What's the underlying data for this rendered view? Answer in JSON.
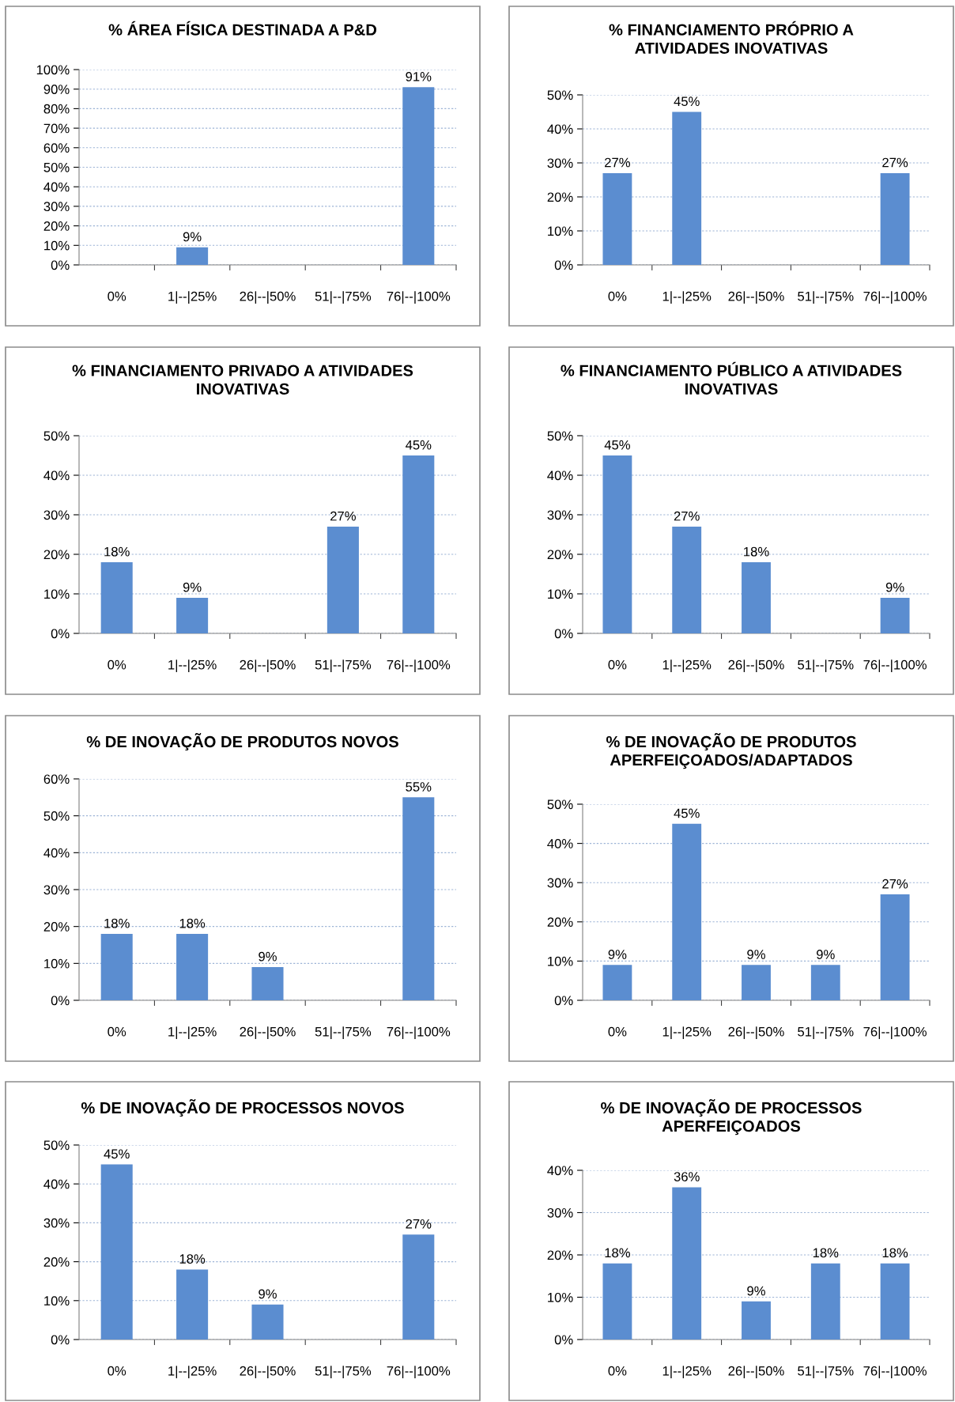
{
  "chart_data": [
    {
      "type": "bar",
      "title": "% ÁREA FÍSICA DESTINADA A P&D",
      "categories": [
        "0%",
        "1|--|25%",
        "26|--|50%",
        "51|--|75%",
        "76|--|100%"
      ],
      "values": [
        0,
        9,
        0,
        0,
        91
      ],
      "value_labels": [
        null,
        "9%",
        null,
        null,
        "91%"
      ],
      "color": "#5b8dd0",
      "ylim": [
        0,
        100
      ],
      "yticks": [
        {
          "value": 0,
          "label": "0%"
        },
        {
          "value": 10,
          "label": "10%"
        },
        {
          "value": 20,
          "label": "20%"
        },
        {
          "value": 30,
          "label": "30%"
        },
        {
          "value": 40,
          "label": "40%"
        },
        {
          "value": 50,
          "label": "50%"
        },
        {
          "value": 60,
          "label": "60%"
        },
        {
          "value": 70,
          "label": "70%"
        },
        {
          "value": 80,
          "label": "80%"
        },
        {
          "value": 90,
          "label": "90%"
        },
        {
          "value": 100,
          "label": "100%"
        }
      ],
      "grid": "y"
    },
    {
      "type": "bar",
      "title": "% FINANCIAMENTO PRÓPRIO A\nATIVIDADES INOVATIVAS",
      "categories": [
        "0%",
        "1|--|25%",
        "26|--|50%",
        "51|--|75%",
        "76|--|100%"
      ],
      "values": [
        27,
        45,
        0,
        0,
        27
      ],
      "value_labels": [
        "27%",
        "45%",
        null,
        null,
        "27%"
      ],
      "color": "#5b8dd0",
      "ylim": [
        0,
        50
      ],
      "yticks": [
        {
          "value": 0,
          "label": "0%"
        },
        {
          "value": 10,
          "label": "10%"
        },
        {
          "value": 20,
          "label": "20%"
        },
        {
          "value": 30,
          "label": "30%"
        },
        {
          "value": 40,
          "label": "40%"
        },
        {
          "value": 50,
          "label": "50%"
        }
      ],
      "grid": "y"
    },
    {
      "type": "bar",
      "title": "% FINANCIAMENTO PRIVADO A ATIVIDADES\nINOVATIVAS",
      "categories": [
        "0%",
        "1|--|25%",
        "26|--|50%",
        "51|--|75%",
        "76|--|100%"
      ],
      "values": [
        18,
        9,
        0,
        27,
        45
      ],
      "value_labels": [
        "18%",
        "9%",
        null,
        "27%",
        "45%"
      ],
      "color": "#5b8dd0",
      "ylim": [
        0,
        50
      ],
      "yticks": [
        {
          "value": 0,
          "label": "0%"
        },
        {
          "value": 10,
          "label": "10%"
        },
        {
          "value": 20,
          "label": "20%"
        },
        {
          "value": 30,
          "label": "30%"
        },
        {
          "value": 40,
          "label": "40%"
        },
        {
          "value": 50,
          "label": "50%"
        }
      ],
      "grid": "y"
    },
    {
      "type": "bar",
      "title": "% FINANCIAMENTO PÚBLICO A ATIVIDADES\nINOVATIVAS",
      "categories": [
        "0%",
        "1|--|25%",
        "26|--|50%",
        "51|--|75%",
        "76|--|100%"
      ],
      "values": [
        45,
        27,
        18,
        0,
        9
      ],
      "value_labels": [
        "45%",
        "27%",
        "18%",
        null,
        "9%"
      ],
      "color": "#5b8dd0",
      "ylim": [
        0,
        50
      ],
      "yticks": [
        {
          "value": 0,
          "label": "0%"
        },
        {
          "value": 10,
          "label": "10%"
        },
        {
          "value": 20,
          "label": "20%"
        },
        {
          "value": 30,
          "label": "30%"
        },
        {
          "value": 40,
          "label": "40%"
        },
        {
          "value": 50,
          "label": "50%"
        }
      ],
      "grid": "y"
    },
    {
      "type": "bar",
      "title": "% DE INOVAÇÃO DE PRODUTOS NOVOS",
      "categories": [
        "0%",
        "1|--|25%",
        "26|--|50%",
        "51|--|75%",
        "76|--|100%"
      ],
      "values": [
        18,
        18,
        9,
        0,
        55
      ],
      "value_labels": [
        "18%",
        "18%",
        "9%",
        null,
        "55%"
      ],
      "color": "#5b8dd0",
      "ylim": [
        0,
        60
      ],
      "yticks": [
        {
          "value": 0,
          "label": "0%"
        },
        {
          "value": 10,
          "label": "10%"
        },
        {
          "value": 20,
          "label": "20%"
        },
        {
          "value": 30,
          "label": "30%"
        },
        {
          "value": 40,
          "label": "40%"
        },
        {
          "value": 50,
          "label": "50%"
        },
        {
          "value": 60,
          "label": "60%"
        }
      ],
      "grid": "y"
    },
    {
      "type": "bar",
      "title": "% DE INOVAÇÃO DE PRODUTOS\nAPERFEIÇOADOS/ADAPTADOS",
      "categories": [
        "0%",
        "1|--|25%",
        "26|--|50%",
        "51|--|75%",
        "76|--|100%"
      ],
      "values": [
        9,
        45,
        9,
        9,
        27
      ],
      "value_labels": [
        "9%",
        "45%",
        "9%",
        "9%",
        "27%"
      ],
      "color": "#5b8dd0",
      "ylim": [
        0,
        50
      ],
      "yticks": [
        {
          "value": 0,
          "label": "0%"
        },
        {
          "value": 10,
          "label": "10%"
        },
        {
          "value": 20,
          "label": "20%"
        },
        {
          "value": 30,
          "label": "30%"
        },
        {
          "value": 40,
          "label": "40%"
        },
        {
          "value": 50,
          "label": "50%"
        }
      ],
      "grid": "y"
    },
    {
      "type": "bar",
      "title": "% DE INOVAÇÃO DE PROCESSOS NOVOS",
      "categories": [
        "0%",
        "1|--|25%",
        "26|--|50%",
        "51|--|75%",
        "76|--|100%"
      ],
      "values": [
        45,
        18,
        9,
        0,
        27
      ],
      "value_labels": [
        "45%",
        "18%",
        "9%",
        null,
        "27%"
      ],
      "color": "#5b8dd0",
      "ylim": [
        0,
        50
      ],
      "yticks": [
        {
          "value": 0,
          "label": "0%"
        },
        {
          "value": 10,
          "label": "10%"
        },
        {
          "value": 20,
          "label": "20%"
        },
        {
          "value": 30,
          "label": "30%"
        },
        {
          "value": 40,
          "label": "40%"
        },
        {
          "value": 50,
          "label": "50%"
        }
      ],
      "grid": "y"
    },
    {
      "type": "bar",
      "title": "% DE INOVAÇÃO DE PROCESSOS\nAPERFEIÇOADOS",
      "categories": [
        "0%",
        "1|--|25%",
        "26|--|50%",
        "51|--|75%",
        "76|--|100%"
      ],
      "values": [
        18,
        36,
        9,
        18,
        18
      ],
      "value_labels": [
        "18%",
        "36%",
        "9%",
        "18%",
        "18%"
      ],
      "color": "#5b8dd0",
      "ylim": [
        0,
        40
      ],
      "yticks": [
        {
          "value": 0,
          "label": "0%"
        },
        {
          "value": 10,
          "label": "10%"
        },
        {
          "value": 20,
          "label": "20%"
        },
        {
          "value": 30,
          "label": "30%"
        },
        {
          "value": 40,
          "label": "40%"
        }
      ],
      "grid": "y"
    }
  ]
}
